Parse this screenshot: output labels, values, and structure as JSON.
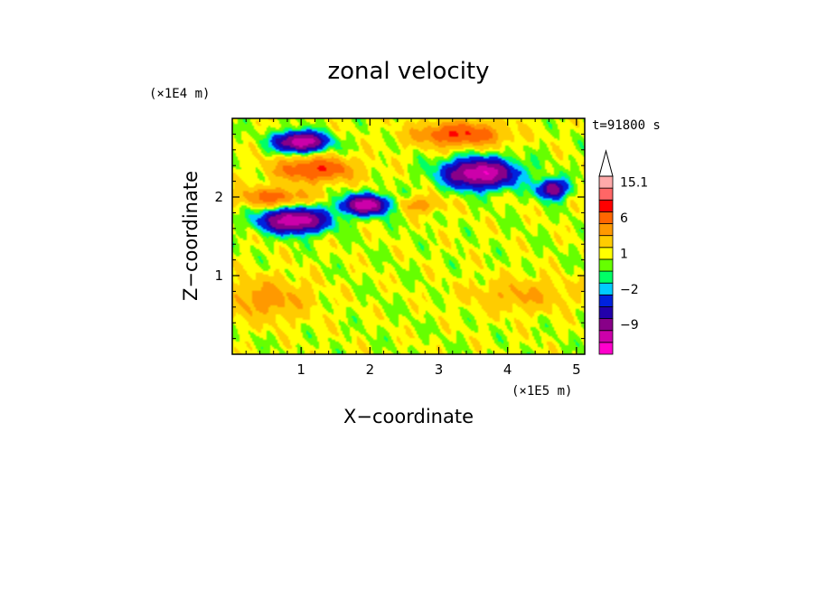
{
  "chart_data": {
    "type": "heatmap",
    "title": "zonal velocity",
    "xlabel": "X−coordinate",
    "ylabel": "Z−coordinate",
    "x_unit": "(×1E5 m)",
    "y_unit": "(×1E4 m)",
    "time_label": "t=91800 s",
    "xlim": [
      0,
      5.12
    ],
    "ylim": [
      0,
      3.0
    ],
    "x_ticks": [
      1,
      2,
      3,
      4,
      5
    ],
    "y_ticks": [
      1,
      2
    ],
    "x_tick_labels": [
      "1",
      "2",
      "3",
      "4",
      "5"
    ],
    "y_tick_labels": [
      "1",
      "2"
    ],
    "colorbar": {
      "levels": [
        -15,
        -12,
        -9,
        -6,
        -4,
        -2,
        -1,
        0,
        1,
        2,
        4,
        6,
        9,
        12,
        15.1
      ],
      "colors": [
        "#ff00cc",
        "#cc00aa",
        "#880088",
        "#2200aa",
        "#0022dd",
        "#00ccff",
        "#00ff66",
        "#66ff00",
        "#ffff00",
        "#ffcc00",
        "#ff9900",
        "#ff6600",
        "#ff0000",
        "#ff6666",
        "#ffaaaa"
      ],
      "extend": "max",
      "labels": [
        {
          "text": "15.1",
          "level": 15.1
        },
        {
          "text": "6",
          "level": 6
        },
        {
          "text": "1",
          "level": 1
        },
        {
          "text": "−2",
          "level": -2
        },
        {
          "text": "−9",
          "level": -9
        }
      ]
    },
    "features": [
      {
        "x": 1.0,
        "z": 2.7,
        "sx": 0.35,
        "sz": 0.12,
        "u": -13,
        "label": "negative core upper-left"
      },
      {
        "x": 0.9,
        "z": 1.7,
        "sx": 0.45,
        "sz": 0.15,
        "u": -13,
        "label": "negative band mid-left"
      },
      {
        "x": 1.95,
        "z": 1.9,
        "sx": 0.35,
        "sz": 0.12,
        "u": -12,
        "label": "negative band center"
      },
      {
        "x": 3.6,
        "z": 2.3,
        "sx": 0.5,
        "sz": 0.18,
        "u": -13,
        "label": "negative core upper-right"
      },
      {
        "x": 4.65,
        "z": 2.1,
        "sx": 0.2,
        "sz": 0.12,
        "u": -10,
        "label": "negative spot right"
      },
      {
        "x": 1.2,
        "z": 2.35,
        "sx": 0.55,
        "sz": 0.15,
        "u": 8,
        "label": "positive band upper-left"
      },
      {
        "x": 0.6,
        "z": 2.0,
        "sx": 0.5,
        "sz": 0.12,
        "u": 6,
        "label": "positive band left"
      },
      {
        "x": 3.3,
        "z": 2.8,
        "sx": 0.6,
        "sz": 0.15,
        "u": 8,
        "label": "positive band top-right"
      },
      {
        "x": 0.5,
        "z": 0.7,
        "sx": 0.6,
        "sz": 0.25,
        "u": 4,
        "label": "positive region lower-left"
      },
      {
        "x": 4.2,
        "z": 0.75,
        "sx": 0.7,
        "sz": 0.2,
        "u": 3,
        "label": "positive region lower-right"
      },
      {
        "x": 2.7,
        "z": 1.9,
        "sx": 0.35,
        "sz": 0.1,
        "u": 4,
        "label": "positive patch center"
      }
    ]
  }
}
